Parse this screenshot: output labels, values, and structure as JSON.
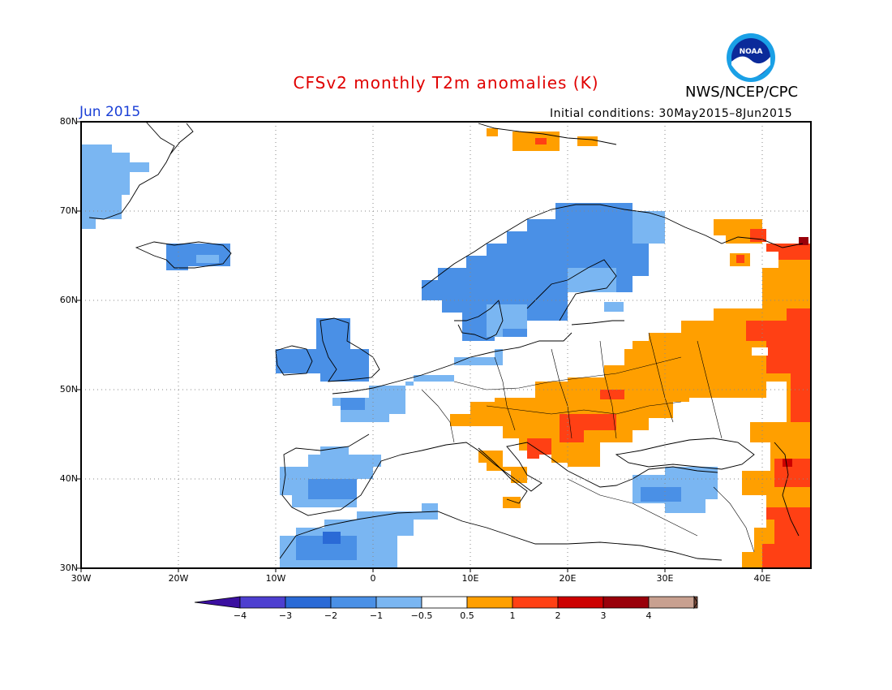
{
  "header": {
    "title": "CFSv2 monthly T2m anomalies (K)",
    "agency": "NWS/NCEP/CPC",
    "month": "Jun 2015",
    "initial_conditions": "Initial conditions: 30May2015–8Jun2015",
    "logo_icon": "noaa-logo-icon",
    "logo_text": "NOAA"
  },
  "map": {
    "lat_labels": [
      "80N",
      "70N",
      "60N",
      "50N",
      "40N",
      "30N"
    ],
    "lon_labels": [
      "30W",
      "20W",
      "10W",
      "0",
      "10E",
      "20E",
      "30E",
      "40E"
    ],
    "colors": {
      "lt_neg4": "#3b0fa0",
      "neg4_neg3": "#4d3fd0",
      "neg3_neg2": "#2a6ad6",
      "neg2_neg1": "#4a90e6",
      "neg1_neg05": "#7ab6f2",
      "neutral": "#ffffff",
      "p05_1": "#ff9f00",
      "p1_2": "#ff4014",
      "p2_3": "#cc0000",
      "p3_4": "#99000a",
      "p4_plus": "#c8a090",
      "gt4": "#7a4a3a"
    }
  },
  "colorbar": {
    "labels": [
      "−4",
      "−3",
      "−2",
      "−1",
      "−0.5",
      "0.5",
      "1",
      "2",
      "3",
      "4"
    ]
  }
}
